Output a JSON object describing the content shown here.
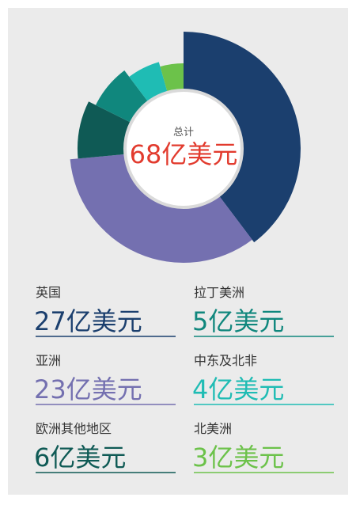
{
  "chart_data": {
    "type": "donut",
    "center_label": "总计",
    "total": 68,
    "total_label": "68亿美元",
    "categories": [
      "英国",
      "亚洲",
      "欧洲其他地区",
      "拉丁美洲",
      "中东及北非",
      "北美洲"
    ],
    "values": [
      27,
      23,
      6,
      5,
      4,
      3
    ],
    "value_labels": [
      "27亿美元",
      "23亿美元",
      "6亿美元",
      "5亿美元",
      "4亿美元",
      "3亿美元"
    ],
    "colors": [
      "#1b3f6e",
      "#7470b0",
      "#0f5a55",
      "#10877d",
      "#1fbcb4",
      "#6cc24a"
    ]
  }
}
